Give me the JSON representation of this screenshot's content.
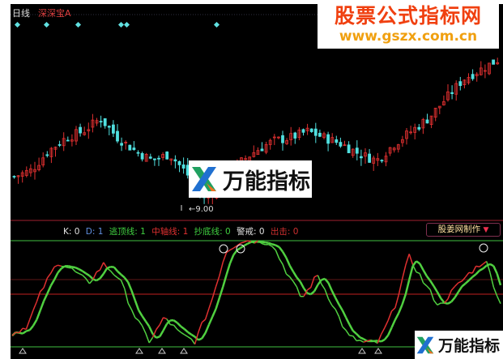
{
  "header": {
    "period": "日线",
    "formula_name": "深深宝A"
  },
  "watermark": {
    "title": "股票公式指标网",
    "url": "www.gszx.com.cn"
  },
  "logo": {
    "text": "万能指标"
  },
  "price_panel": {
    "low_label": "9.00",
    "close_keypoints": [
      9.8,
      10.0,
      10.6,
      11.0,
      11.2,
      11.6,
      11.0,
      10.6,
      10.3,
      10.5,
      9.9,
      9.1,
      9.6,
      10.2,
      10.6,
      10.9,
      11.0,
      11.2,
      11.0,
      10.8,
      10.5,
      10.3,
      10.8,
      11.2,
      11.6,
      12.2,
      12.8,
      13.1,
      13.4
    ],
    "signal_markers": 6
  },
  "indicator": {
    "legend": [
      {
        "text": "K: 0",
        "color": "#e0e0e0"
      },
      {
        "text": "D: 1",
        "color": "#6090e0"
      },
      {
        "text": "逃顶线: 1",
        "color": "#40d040"
      },
      {
        "text": "中轴线: 1",
        "color": "#e03030"
      },
      {
        "text": "抄底线: 0",
        "color": "#40d040"
      },
      {
        "text": "警戒: 0",
        "color": "#e0e0e0"
      },
      {
        "text": "出击: 0",
        "color": "#d03030"
      }
    ],
    "maker_label": "股姜网制作",
    "k_keypoints": [
      12,
      20,
      55,
      80,
      72,
      60,
      78,
      65,
      30,
      5,
      28,
      12,
      5,
      40,
      90,
      100,
      100,
      98,
      70,
      45,
      68,
      40,
      10,
      4,
      4,
      35,
      85,
      60,
      38,
      55,
      70,
      82,
      40
    ]
  },
  "colors": {
    "up": "#e03030",
    "down": "#50e0e0",
    "k_up": "#e03030",
    "d_line": "#50d040",
    "top_line": "#40c040",
    "mid_line": "#c02020"
  }
}
